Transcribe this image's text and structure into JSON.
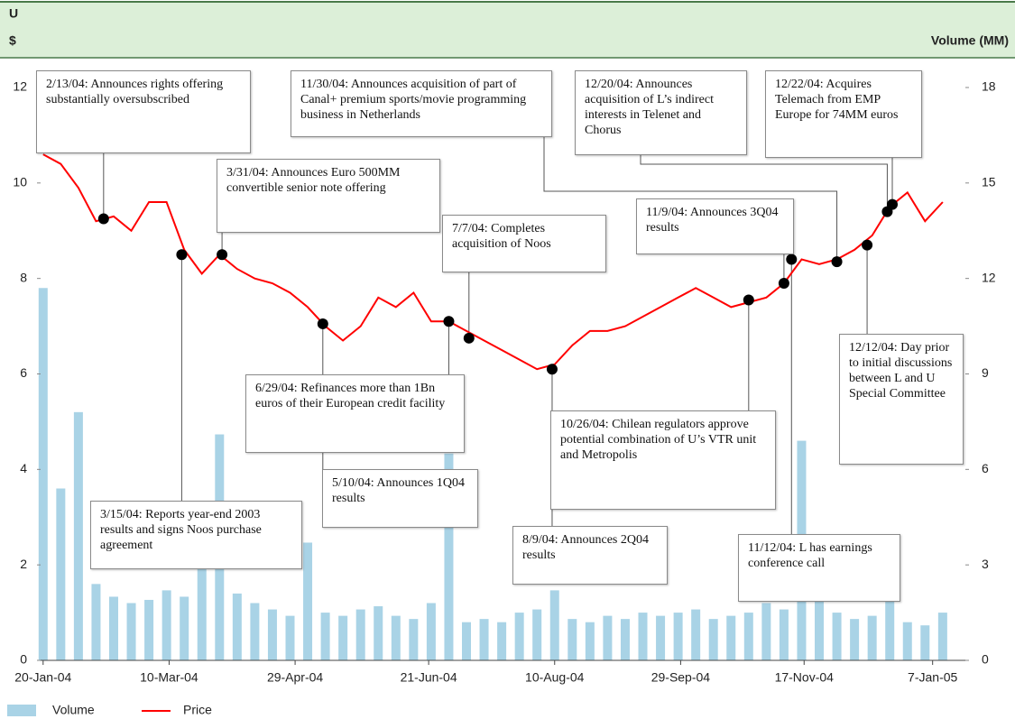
{
  "chart_data": {
    "type": "line",
    "title": "U",
    "ylabel": "$",
    "y2label": "Volume (MM)",
    "x": [
      "2004-01-20",
      "2004-01-27",
      "2004-02-03",
      "2004-02-10",
      "2004-02-17",
      "2004-02-24",
      "2004-03-02",
      "2004-03-09",
      "2004-03-16",
      "2004-03-23",
      "2004-03-30",
      "2004-04-06",
      "2004-04-13",
      "2004-04-20",
      "2004-04-27",
      "2004-05-04",
      "2004-05-11",
      "2004-05-18",
      "2004-05-25",
      "2004-06-01",
      "2004-06-08",
      "2004-06-15",
      "2004-06-22",
      "2004-06-29",
      "2004-07-06",
      "2004-07-13",
      "2004-07-20",
      "2004-07-27",
      "2004-08-03",
      "2004-08-10",
      "2004-08-17",
      "2004-08-24",
      "2004-08-31",
      "2004-09-07",
      "2004-09-14",
      "2004-09-21",
      "2004-09-28",
      "2004-10-05",
      "2004-10-12",
      "2004-10-19",
      "2004-10-26",
      "2004-11-02",
      "2004-11-09",
      "2004-11-16",
      "2004-11-23",
      "2004-11-30",
      "2004-12-07",
      "2004-12-14",
      "2004-12-21",
      "2004-12-28",
      "2005-01-04",
      "2005-01-11"
    ],
    "series": [
      {
        "name": "Volume",
        "type": "bar",
        "axis": "y2",
        "color": "#a9d3e6",
        "values": [
          11.7,
          5.4,
          7.8,
          2.4,
          2.0,
          1.8,
          1.9,
          2.2,
          2.0,
          3.0,
          7.1,
          2.1,
          1.8,
          1.6,
          1.4,
          3.7,
          1.5,
          1.4,
          1.6,
          1.7,
          1.4,
          1.3,
          1.8,
          6.5,
          1.2,
          1.3,
          1.2,
          1.5,
          1.6,
          2.2,
          1.3,
          1.2,
          1.4,
          1.3,
          1.5,
          1.4,
          1.5,
          1.6,
          1.3,
          1.4,
          1.5,
          1.8,
          1.6,
          6.9,
          2.5,
          1.5,
          1.3,
          1.4,
          2.4,
          1.2,
          1.1,
          1.5
        ]
      },
      {
        "name": "Price",
        "type": "line",
        "color": "#ff0000",
        "values": [
          10.6,
          10.4,
          9.9,
          9.2,
          9.3,
          9.0,
          9.6,
          9.6,
          8.6,
          8.1,
          8.5,
          8.2,
          8.0,
          7.9,
          7.7,
          7.4,
          7.0,
          6.7,
          7.0,
          7.6,
          7.4,
          7.7,
          7.1,
          7.1,
          6.9,
          6.7,
          6.5,
          6.3,
          6.1,
          6.2,
          6.6,
          6.9,
          6.9,
          7.0,
          7.2,
          7.4,
          7.6,
          7.8,
          7.6,
          7.4,
          7.5,
          7.6,
          7.9,
          8.4,
          8.3,
          8.4,
          8.6,
          8.9,
          9.5,
          9.8,
          9.2,
          9.6
        ]
      }
    ],
    "xlim": [
      "2004-01-19",
      "2005-01-20"
    ],
    "xticks": [
      {
        "value": "2004-01-20",
        "label": "20-Jan-04"
      },
      {
        "value": "2004-03-10",
        "label": "10-Mar-04"
      },
      {
        "value": "2004-04-29",
        "label": "29-Apr-04"
      },
      {
        "value": "2004-06-21",
        "label": "21-Jun-04"
      },
      {
        "value": "2004-08-10",
        "label": "10-Aug-04"
      },
      {
        "value": "2004-09-29",
        "label": "29-Sep-04"
      },
      {
        "value": "2004-11-17",
        "label": "17-Nov-04"
      },
      {
        "value": "2005-01-07",
        "label": "7-Jan-05"
      }
    ],
    "ylim": [
      0,
      12
    ],
    "yticks": [
      0,
      2,
      4,
      6,
      8,
      10,
      12
    ],
    "y2lim": [
      0,
      18
    ],
    "y2ticks": [
      0,
      3,
      6,
      9,
      12,
      15,
      18
    ],
    "annotations": [
      {
        "x": "2004-02-13",
        "value": 9.25,
        "text": "2/13/04: Announces rights offering substantially oversubscribed"
      },
      {
        "x": "2004-03-15",
        "value": 8.5,
        "text": "3/15/04: Reports year-end 2003 results and signs Noos purchase agreement"
      },
      {
        "x": "2004-03-31",
        "value": 8.5,
        "text": "3/31/04: Announces Euro 500MM convertible senior note offering"
      },
      {
        "x": "2004-05-10",
        "value": 7.05,
        "text": "5/10/04: Announces 1Q04 results"
      },
      {
        "x": "2004-06-29",
        "value": 7.1,
        "text": "6/29/04: Refinances more than 1Bn euros of their European credit facility"
      },
      {
        "x": "2004-07-07",
        "value": 6.75,
        "text": "7/7/04: Completes acquisition of Noos"
      },
      {
        "x": "2004-08-09",
        "value": 6.1,
        "text": "8/9/04: Announces 2Q04 results"
      },
      {
        "x": "2004-10-26",
        "value": 7.55,
        "text": "10/26/04: Chilean regulators approve potential combination of U’s VTR unit and Metropolis"
      },
      {
        "x": "2004-11-09",
        "value": 7.9,
        "text": "11/9/04: Announces 3Q04 results"
      },
      {
        "x": "2004-11-12",
        "value": 8.4,
        "text": "11/12/04: L has earnings conference call"
      },
      {
        "x": "2004-11-30",
        "value": 8.35,
        "text": "11/30/04: Announces acquisition of part of Canal+ premium sports/movie programming business in Netherlands"
      },
      {
        "x": "2004-12-12",
        "value": 8.7,
        "text": "12/12/04: Day prior to initial discussions between L and U Special Committee"
      },
      {
        "x": "2004-12-20",
        "value": 9.4,
        "text": "12/20/04: Announces acquisition of L’s indirect interests in Telenet and Chorus"
      },
      {
        "x": "2004-12-22",
        "value": 9.55,
        "text": "12/22/04: Acquires Telemach from EMP Europe for 74MM euros"
      }
    ]
  }
}
